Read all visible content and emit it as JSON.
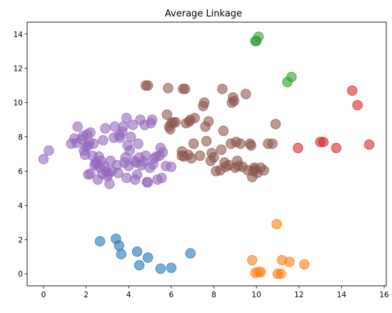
{
  "chart_data": {
    "type": "scatter",
    "title": "Average Linkage",
    "xlabel": "",
    "ylabel": "",
    "xlim": [
      -0.77,
      16.1
    ],
    "ylim": [
      -0.7,
      14.7
    ],
    "xticks": [
      0,
      2,
      4,
      6,
      8,
      10,
      12,
      14,
      16
    ],
    "yticks": [
      0,
      2,
      4,
      6,
      8,
      10,
      12,
      14
    ],
    "grid": false,
    "legend": "none",
    "marker": {
      "shape": "circle",
      "alpha": 0.6
    },
    "series": [
      {
        "color": "#1f77b4",
        "points": [
          [
            2.65,
            1.9
          ],
          [
            3.4,
            2.05
          ],
          [
            3.55,
            1.65
          ],
          [
            3.65,
            1.15
          ],
          [
            4.4,
            1.3
          ],
          [
            4.5,
            0.5
          ],
          [
            4.9,
            0.95
          ],
          [
            5.5,
            0.3
          ],
          [
            6.0,
            0.35
          ],
          [
            6.9,
            1.2
          ]
        ]
      },
      {
        "color": "#ff7f0e",
        "points": [
          [
            9.8,
            0.8
          ],
          [
            9.95,
            0.05
          ],
          [
            10.1,
            0.1
          ],
          [
            10.2,
            0.1
          ],
          [
            10.95,
            2.9
          ],
          [
            11.0,
            0.0
          ],
          [
            11.2,
            0.8
          ],
          [
            11.15,
            0.0
          ],
          [
            11.55,
            0.7
          ],
          [
            12.25,
            0.55
          ]
        ]
      },
      {
        "color": "#2ca02c",
        "points": [
          [
            9.95,
            13.6
          ],
          [
            10.0,
            13.6
          ],
          [
            10.1,
            13.85
          ],
          [
            11.45,
            11.2
          ],
          [
            11.65,
            11.5
          ]
        ]
      },
      {
        "color": "#d62728",
        "points": [
          [
            11.95,
            7.35
          ],
          [
            13.0,
            7.7
          ],
          [
            13.15,
            7.7
          ],
          [
            13.75,
            7.35
          ],
          [
            14.5,
            10.7
          ],
          [
            14.75,
            9.85
          ],
          [
            15.3,
            7.55
          ]
        ]
      },
      {
        "color": "#9467bd",
        "points": [
          [
            0.0,
            6.7
          ],
          [
            0.25,
            7.2
          ],
          [
            1.3,
            7.6
          ],
          [
            1.45,
            7.9
          ],
          [
            1.55,
            7.65
          ],
          [
            1.6,
            8.6
          ],
          [
            1.8,
            7.85
          ],
          [
            1.85,
            8.05
          ],
          [
            1.9,
            7.2
          ],
          [
            1.95,
            6.95
          ],
          [
            2.0,
            7.4
          ],
          [
            2.05,
            8.15
          ],
          [
            2.1,
            7.5
          ],
          [
            2.15,
            7.7
          ],
          [
            2.2,
            8.25
          ],
          [
            2.1,
            5.8
          ],
          [
            2.2,
            5.85
          ],
          [
            2.3,
            6.9
          ],
          [
            2.35,
            7.6
          ],
          [
            2.4,
            6.35
          ],
          [
            2.45,
            6.5
          ],
          [
            2.5,
            6.4
          ],
          [
            2.55,
            5.5
          ],
          [
            2.6,
            6.85
          ],
          [
            2.65,
            6.2
          ],
          [
            2.7,
            6.6
          ],
          [
            2.75,
            5.85
          ],
          [
            2.8,
            7.8
          ],
          [
            2.85,
            6.3
          ],
          [
            2.9,
            8.5
          ],
          [
            2.95,
            6.0
          ],
          [
            3.0,
            5.7
          ],
          [
            3.05,
            5.85
          ],
          [
            3.1,
            5.25
          ],
          [
            3.15,
            6.6
          ],
          [
            3.2,
            6.0
          ],
          [
            3.3,
            7.95
          ],
          [
            3.35,
            8.6
          ],
          [
            3.45,
            6.35
          ],
          [
            3.5,
            5.9
          ],
          [
            3.55,
            8.1
          ],
          [
            3.6,
            7.95
          ],
          [
            3.7,
            8.3
          ],
          [
            3.75,
            8.6
          ],
          [
            3.8,
            6.5
          ],
          [
            3.85,
            6.8
          ],
          [
            3.9,
            5.6
          ],
          [
            3.95,
            7.5
          ],
          [
            3.9,
            9.1
          ],
          [
            4.0,
            6.3
          ],
          [
            4.05,
            7.2
          ],
          [
            4.1,
            8.0
          ],
          [
            4.2,
            8.7
          ],
          [
            4.25,
            6.6
          ],
          [
            4.3,
            5.5
          ],
          [
            4.35,
            6.5
          ],
          [
            4.4,
            5.8
          ],
          [
            4.45,
            7.6
          ],
          [
            4.5,
            6.8
          ],
          [
            4.55,
            9.0
          ],
          [
            4.6,
            6.35
          ],
          [
            4.7,
            6.55
          ],
          [
            4.75,
            8.7
          ],
          [
            4.8,
            6.9
          ],
          [
            4.85,
            5.35
          ],
          [
            4.9,
            5.35
          ],
          [
            5.0,
            6.2
          ],
          [
            5.05,
            8.8
          ],
          [
            5.1,
            9.0
          ],
          [
            5.15,
            6.4
          ],
          [
            5.2,
            6.75
          ],
          [
            5.3,
            6.85
          ],
          [
            5.35,
            5.5
          ],
          [
            5.45,
            6.9
          ],
          [
            5.5,
            7.35
          ],
          [
            5.55,
            5.6
          ],
          [
            5.6,
            7.1
          ],
          [
            5.75,
            6.3
          ],
          [
            6.0,
            6.25
          ]
        ]
      },
      {
        "color": "#8c564b",
        "points": [
          [
            4.8,
            11.0
          ],
          [
            4.9,
            11.0
          ],
          [
            5.8,
            9.3
          ],
          [
            5.9,
            8.6
          ],
          [
            5.95,
            8.45
          ],
          [
            6.0,
            8.8
          ],
          [
            6.1,
            8.85
          ],
          [
            6.2,
            8.85
          ],
          [
            5.85,
            10.85
          ],
          [
            6.5,
            7.15
          ],
          [
            6.5,
            6.9
          ],
          [
            6.55,
            10.8
          ],
          [
            6.6,
            6.85
          ],
          [
            6.65,
            10.8
          ],
          [
            6.7,
            8.8
          ],
          [
            6.8,
            6.95
          ],
          [
            6.85,
            8.9
          ],
          [
            6.9,
            9.0
          ],
          [
            6.95,
            6.75
          ],
          [
            7.05,
            7.6
          ],
          [
            7.1,
            9.1
          ],
          [
            7.35,
            6.9
          ],
          [
            7.5,
            9.8
          ],
          [
            7.55,
            10.0
          ],
          [
            7.6,
            8.6
          ],
          [
            7.65,
            7.75
          ],
          [
            7.75,
            8.9
          ],
          [
            7.85,
            6.6
          ],
          [
            7.9,
            7.05
          ],
          [
            8.0,
            6.8
          ],
          [
            8.1,
            6.0
          ],
          [
            8.3,
            6.05
          ],
          [
            8.35,
            7.25
          ],
          [
            8.4,
            10.8
          ],
          [
            8.45,
            8.35
          ],
          [
            8.5,
            6.5
          ],
          [
            8.55,
            6.25
          ],
          [
            8.7,
            6.35
          ],
          [
            8.8,
            7.6
          ],
          [
            8.85,
            10.0
          ],
          [
            8.9,
            10.3
          ],
          [
            8.95,
            10.1
          ],
          [
            9.0,
            6.2
          ],
          [
            9.05,
            7.7
          ],
          [
            9.1,
            6.6
          ],
          [
            9.15,
            6.3
          ],
          [
            9.25,
            7.6
          ],
          [
            9.35,
            6.25
          ],
          [
            9.5,
            10.5
          ],
          [
            9.6,
            6.05
          ],
          [
            9.7,
            7.6
          ],
          [
            9.75,
            7.5
          ],
          [
            9.8,
            5.65
          ],
          [
            9.85,
            6.0
          ],
          [
            9.9,
            6.2
          ],
          [
            9.95,
            6.1
          ],
          [
            10.05,
            5.9
          ],
          [
            10.2,
            6.2
          ],
          [
            10.35,
            6.05
          ],
          [
            10.55,
            7.6
          ],
          [
            10.75,
            7.6
          ],
          [
            10.9,
            8.75
          ]
        ]
      }
    ]
  }
}
